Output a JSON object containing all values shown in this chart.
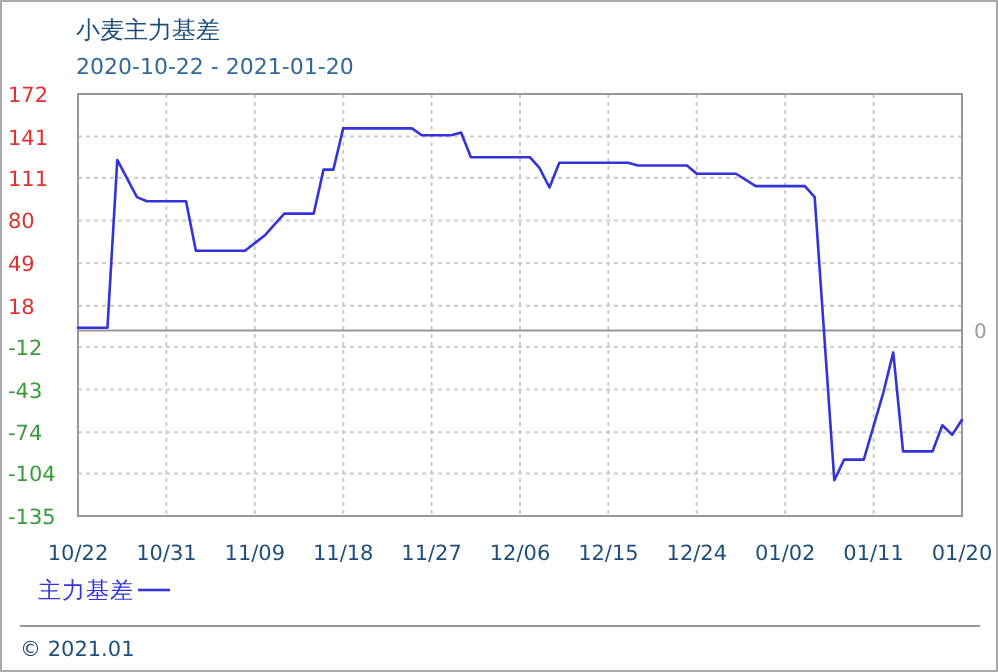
{
  "chart_data": {
    "type": "line",
    "title": "小麦主力基差",
    "subtitle": "2020-10-22 - 2021-01-20",
    "x": [
      "2020-10-22",
      "2020-10-25",
      "2020-10-26",
      "2020-10-28",
      "2020-10-29",
      "2020-11-02",
      "2020-11-03",
      "2020-11-08",
      "2020-11-10",
      "2020-11-12",
      "2020-11-15",
      "2020-11-16",
      "2020-11-17",
      "2020-11-18",
      "2020-11-25",
      "2020-11-26",
      "2020-11-29",
      "2020-11-30",
      "2020-12-01",
      "2020-12-07",
      "2020-12-08",
      "2020-12-09",
      "2020-12-10",
      "2020-12-17",
      "2020-12-18",
      "2020-12-23",
      "2020-12-24",
      "2020-12-28",
      "2020-12-30",
      "2021-01-04",
      "2021-01-05",
      "2021-01-07",
      "2021-01-08",
      "2021-01-10",
      "2021-01-12",
      "2021-01-13",
      "2021-01-14",
      "2021-01-17",
      "2021-01-18",
      "2021-01-19",
      "2021-01-20"
    ],
    "series": [
      {
        "name": "主力基差",
        "color": "#3333dd",
        "values": [
          2,
          2,
          124,
          97,
          94,
          94,
          58,
          58,
          69,
          85,
          85,
          117,
          117,
          147,
          147,
          142,
          142,
          144,
          126,
          126,
          118,
          104,
          122,
          122,
          120,
          120,
          114,
          114,
          105,
          105,
          97,
          -109,
          -94,
          -94,
          -45,
          -16,
          -88,
          -88,
          -69,
          -76,
          -65
        ]
      }
    ],
    "xlim": [
      "2020-10-22",
      "2021-01-20"
    ],
    "xticks": [
      {
        "value": "2020-10-22",
        "label": "10/22"
      },
      {
        "value": "2020-10-31",
        "label": "10/31"
      },
      {
        "value": "2020-11-09",
        "label": "11/09"
      },
      {
        "value": "2020-11-18",
        "label": "11/18"
      },
      {
        "value": "2020-11-27",
        "label": "11/27"
      },
      {
        "value": "2020-12-06",
        "label": "12/06"
      },
      {
        "value": "2020-12-15",
        "label": "12/15"
      },
      {
        "value": "2020-12-24",
        "label": "12/24"
      },
      {
        "value": "2021-01-02",
        "label": "01/02"
      },
      {
        "value": "2021-01-11",
        "label": "01/11"
      },
      {
        "value": "2021-01-20",
        "label": "01/20"
      }
    ],
    "ylim": [
      -135,
      172
    ],
    "yticks": [
      -135,
      -104,
      -74,
      -43,
      -12,
      18,
      49,
      80,
      111,
      141,
      172
    ],
    "ref_lines": [
      {
        "axis": "y",
        "value": 0,
        "label": "0",
        "color": "#999999"
      }
    ],
    "grid": true,
    "legend": "bottom left",
    "marker": "none",
    "line_style": "solid",
    "annotations": [
      "© 2021.01"
    ]
  }
}
